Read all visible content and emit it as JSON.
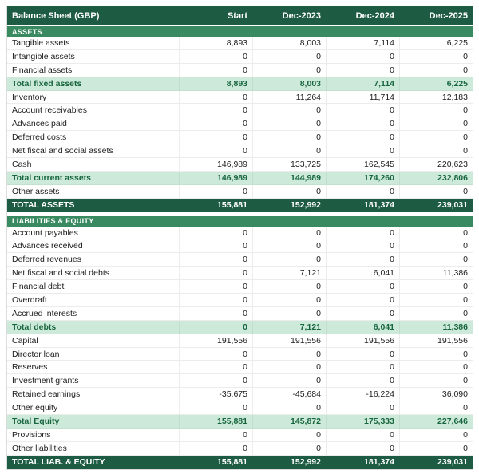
{
  "chart_data": {
    "type": "table",
    "title": "Balance Sheet (GBP)",
    "columns": [
      "Start",
      "Dec-2023",
      "Dec-2024",
      "Dec-2025"
    ],
    "sections": [
      {
        "name": "ASSETS",
        "rows": [
          {
            "label": "Tangible assets",
            "values": [
              "8,893",
              "8,003",
              "7,114",
              "6,225"
            ],
            "style": "normal"
          },
          {
            "label": "Intangible assets",
            "values": [
              "0",
              "0",
              "0",
              "0"
            ],
            "style": "normal"
          },
          {
            "label": "Financial assets",
            "values": [
              "0",
              "0",
              "0",
              "0"
            ],
            "style": "normal"
          },
          {
            "label": "Total fixed assets",
            "values": [
              "8,893",
              "8,003",
              "7,114",
              "6,225"
            ],
            "style": "subtotal"
          },
          {
            "label": "Inventory",
            "values": [
              "0",
              "11,264",
              "11,714",
              "12,183"
            ],
            "style": "normal"
          },
          {
            "label": "Account receivables",
            "values": [
              "0",
              "0",
              "0",
              "0"
            ],
            "style": "normal"
          },
          {
            "label": "Advances paid",
            "values": [
              "0",
              "0",
              "0",
              "0"
            ],
            "style": "normal"
          },
          {
            "label": "Deferred costs",
            "values": [
              "0",
              "0",
              "0",
              "0"
            ],
            "style": "normal"
          },
          {
            "label": "Net fiscal and social assets",
            "values": [
              "0",
              "0",
              "0",
              "0"
            ],
            "style": "normal"
          },
          {
            "label": "Cash",
            "values": [
              "146,989",
              "133,725",
              "162,545",
              "220,623"
            ],
            "style": "normal"
          },
          {
            "label": "Total current assets",
            "values": [
              "146,989",
              "144,989",
              "174,260",
              "232,806"
            ],
            "style": "subtotal"
          },
          {
            "label": "Other assets",
            "values": [
              "0",
              "0",
              "0",
              "0"
            ],
            "style": "normal"
          },
          {
            "label": "TOTAL ASSETS",
            "values": [
              "155,881",
              "152,992",
              "181,374",
              "239,031"
            ],
            "style": "total"
          }
        ]
      },
      {
        "name": "LIABILITIES & EQUITY",
        "rows": [
          {
            "label": "Account payables",
            "values": [
              "0",
              "0",
              "0",
              "0"
            ],
            "style": "normal"
          },
          {
            "label": "Advances received",
            "values": [
              "0",
              "0",
              "0",
              "0"
            ],
            "style": "normal"
          },
          {
            "label": "Deferred revenues",
            "values": [
              "0",
              "0",
              "0",
              "0"
            ],
            "style": "normal"
          },
          {
            "label": "Net fiscal and social debts",
            "values": [
              "0",
              "7,121",
              "6,041",
              "11,386"
            ],
            "style": "normal"
          },
          {
            "label": "Financial debt",
            "values": [
              "0",
              "0",
              "0",
              "0"
            ],
            "style": "normal"
          },
          {
            "label": "Overdraft",
            "values": [
              "0",
              "0",
              "0",
              "0"
            ],
            "style": "normal"
          },
          {
            "label": "Accrued interests",
            "values": [
              "0",
              "0",
              "0",
              "0"
            ],
            "style": "normal"
          },
          {
            "label": "Total debts",
            "values": [
              "0",
              "7,121",
              "6,041",
              "11,386"
            ],
            "style": "subtotal"
          },
          {
            "label": "Capital",
            "values": [
              "191,556",
              "191,556",
              "191,556",
              "191,556"
            ],
            "style": "normal"
          },
          {
            "label": "Director loan",
            "values": [
              "0",
              "0",
              "0",
              "0"
            ],
            "style": "normal"
          },
          {
            "label": "Reserves",
            "values": [
              "0",
              "0",
              "0",
              "0"
            ],
            "style": "normal"
          },
          {
            "label": "Investment grants",
            "values": [
              "0",
              "0",
              "0",
              "0"
            ],
            "style": "normal"
          },
          {
            "label": "Retained earnings",
            "values": [
              "-35,675",
              "-45,684",
              "-16,224",
              "36,090"
            ],
            "style": "normal"
          },
          {
            "label": "Other equity",
            "values": [
              "0",
              "0",
              "0",
              "0"
            ],
            "style": "normal"
          },
          {
            "label": "Total Equity",
            "values": [
              "155,881",
              "145,872",
              "175,333",
              "227,646"
            ],
            "style": "subtotal"
          },
          {
            "label": "Provisions",
            "values": [
              "0",
              "0",
              "0",
              "0"
            ],
            "style": "normal"
          },
          {
            "label": "Other liabilities",
            "values": [
              "0",
              "0",
              "0",
              "0"
            ],
            "style": "normal"
          },
          {
            "label": "TOTAL LIAB. & EQUITY",
            "values": [
              "155,881",
              "152,992",
              "181,374",
              "239,031"
            ],
            "style": "total"
          }
        ]
      }
    ]
  },
  "colors": {
    "header_bg": "#1d5b42",
    "section_bg": "#3a8a61",
    "subtotal_bg": "#cde9d9",
    "subtotal_text": "#17663f",
    "total_bg": "#1d5b42"
  }
}
